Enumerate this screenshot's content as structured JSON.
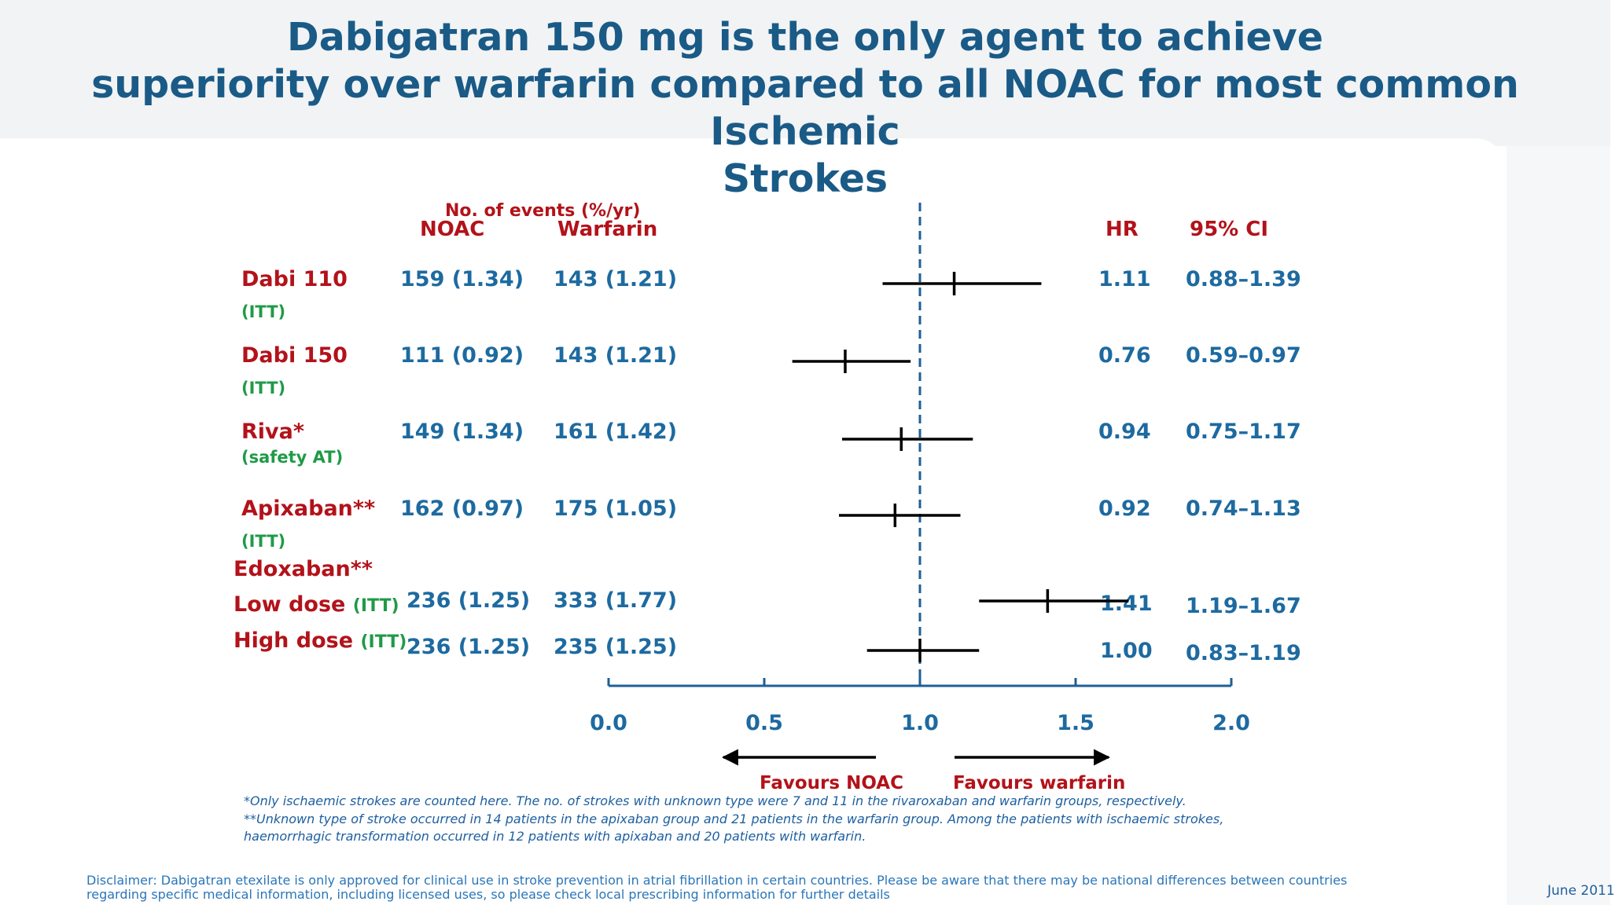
{
  "title": {
    "line1": "Dabigatran 150 mg is the only agent to achieve",
    "line2": "superiority over warfarin compared to all NOAC for most common Ischemic",
    "line3": "Strokes"
  },
  "headers": {
    "events": "No. of events (%/yr)",
    "noac": "NOAC",
    "warfarin": "Warfarin",
    "hr": "HR",
    "ci": "95% CI"
  },
  "chart_data": {
    "type": "forest",
    "xlim": [
      0.0,
      2.0
    ],
    "xticks": [
      "0.0",
      "0.5",
      "1.0",
      "1.5",
      "2.0"
    ],
    "reference_line": 1.0,
    "favours_left": "Favours NOAC",
    "favours_right": "Favours warfarin",
    "group_label": "Edoxaban**",
    "rows": [
      {
        "label": "Dabi 110",
        "sub": "(ITT)",
        "noac": "159 (1.34)",
        "warfarin": "143 (1.21)",
        "hr": 1.11,
        "lo": 0.88,
        "hi": 1.39,
        "hr_text": "1.11",
        "ci_text": "0.88–1.39"
      },
      {
        "label": "Dabi 150",
        "sub": "(ITT)",
        "noac": "111 (0.92)",
        "warfarin": "143 (1.21)",
        "hr": 0.76,
        "lo": 0.59,
        "hi": 0.97,
        "hr_text": "0.76",
        "ci_text": "0.59–0.97"
      },
      {
        "label": "Riva*",
        "sub": "(safety AT)",
        "noac": "149 (1.34)",
        "warfarin": "161 (1.42)",
        "hr": 0.94,
        "lo": 0.75,
        "hi": 1.17,
        "hr_text": "0.94",
        "ci_text": "0.75–1.17"
      },
      {
        "label": "Apixaban**",
        "sub": "(ITT)",
        "noac": "162 (0.97)",
        "warfarin": "175 (1.05)",
        "hr": 0.92,
        "lo": 0.74,
        "hi": 1.13,
        "hr_text": "0.92",
        "ci_text": "0.74–1.13"
      },
      {
        "label": "Low dose",
        "sub": "(ITT)",
        "noac": "236 (1.25)",
        "warfarin": "333 (1.77)",
        "hr": 1.41,
        "lo": 1.19,
        "hi": 1.67,
        "hr_text": "1.41",
        "ci_text": "1.19–1.67"
      },
      {
        "label": "High dose",
        "sub": "(ITT)",
        "noac": "236 (1.25)",
        "warfarin": "235 (1.25)",
        "hr": 1.0,
        "lo": 0.83,
        "hi": 1.19,
        "hr_text": "1.00",
        "ci_text": "0.83–1.19"
      }
    ]
  },
  "footnotes": {
    "note1": "*Only ischaemic strokes are counted here. The no. of strokes with unknown type were 7 and 11 in the rivaroxaban and warfarin groups, respectively.",
    "note2": "**Unknown type of stroke occurred in 14 patients in the apixaban group and 21 patients in the warfarin group. Among the patients with ischaemic strokes, haemorrhagic transformation occurred in 12 patients with apixaban and 20 patients with warfarin."
  },
  "disclaimer": "Disclaimer: Dabigatran etexilate is only approved for clinical use in stroke prevention in atrial fibrillation in certain countries. Please be aware that there may be national differences between countries regarding specific medical information, including licensed uses, so please check local prescribing information for further details",
  "date": "June 2011",
  "colors": {
    "title": "#1a5a86",
    "label_red": "#b3121a",
    "sub_green": "#1f9a47",
    "value_blue": "#1d6aa0",
    "axis_blue": "#1e5f96"
  }
}
